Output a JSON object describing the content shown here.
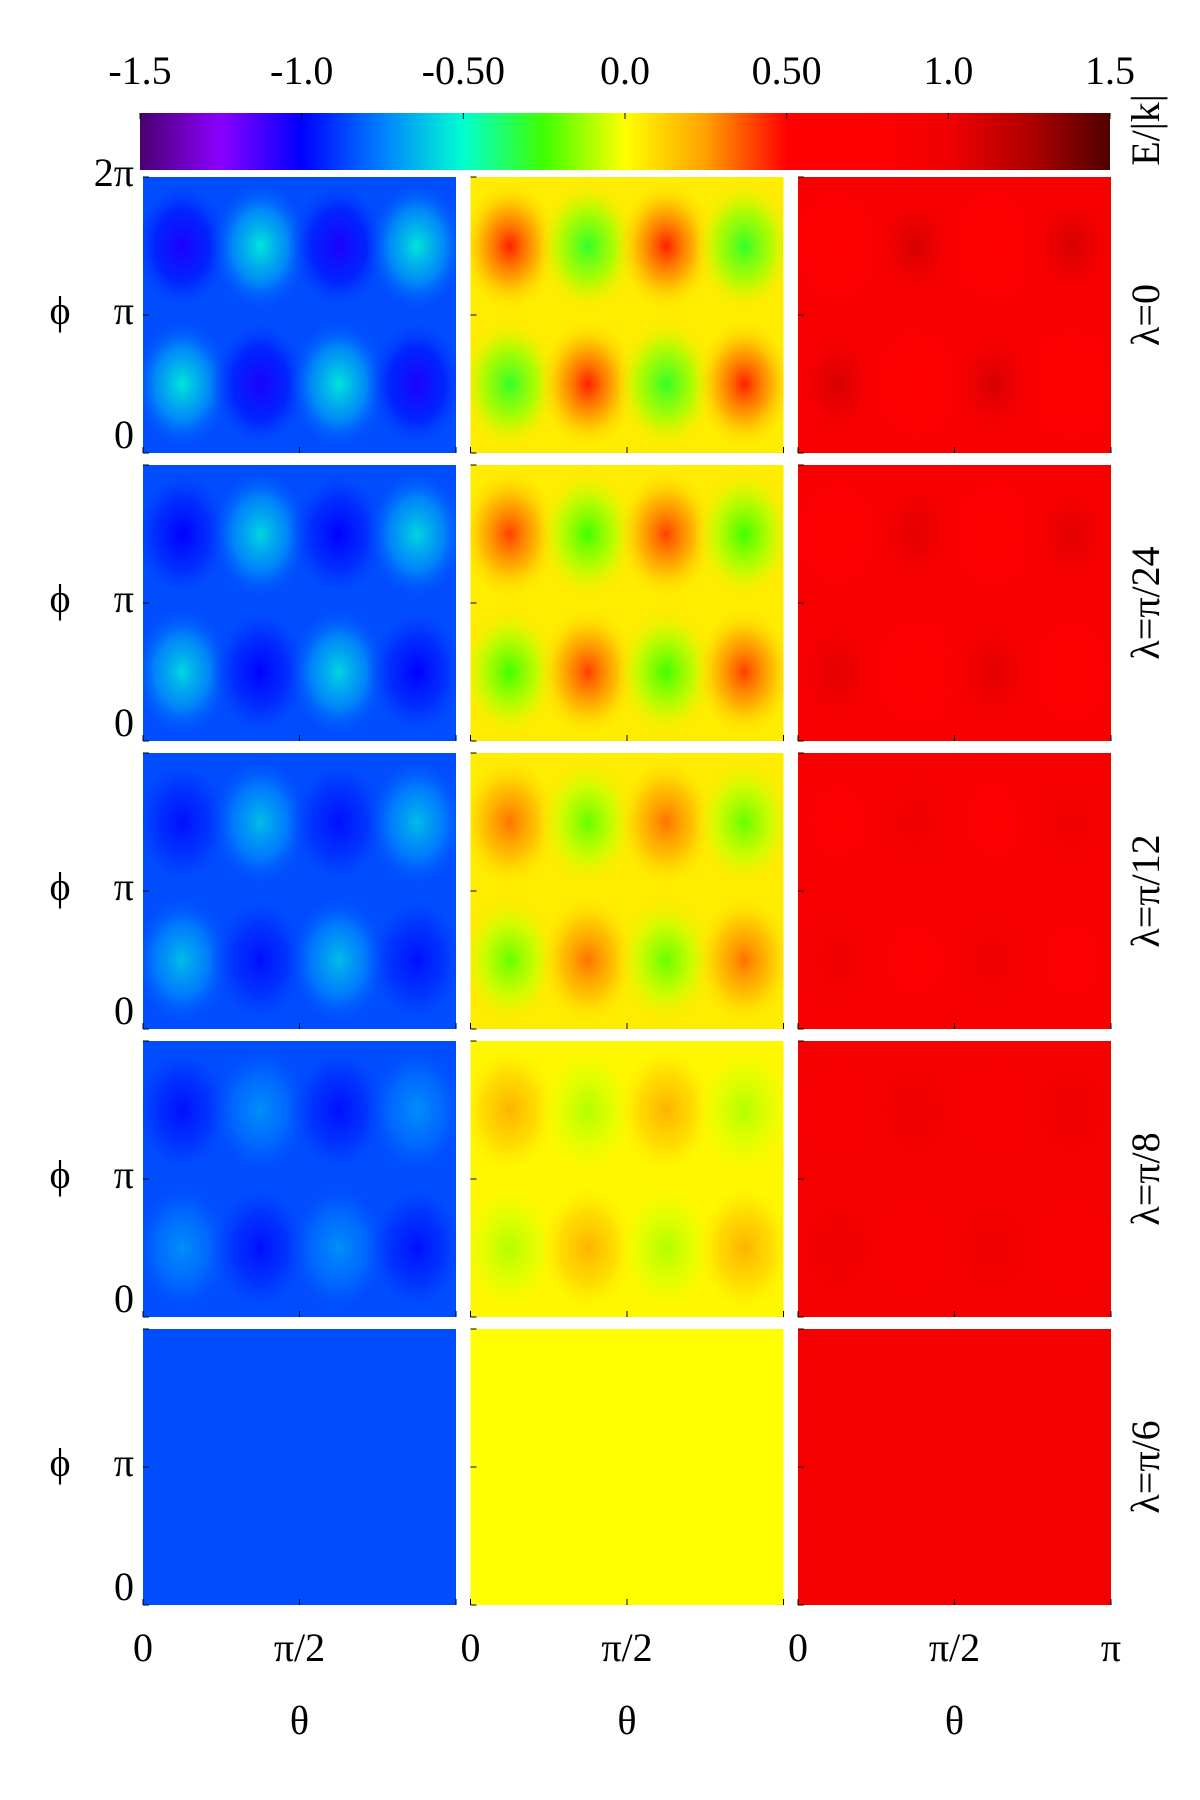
{
  "chart_data": {
    "type": "heatmap",
    "colorbar": {
      "label": "E/|k|",
      "lim": [
        -1.5,
        1.5
      ],
      "ticks": [
        -1.5,
        {
          "value": -1,
          "label": "-1.0"
        },
        {
          "value": -0.5,
          "label": "-0.50"
        },
        {
          "value": 0,
          "label": "0.0"
        },
        {
          "value": 0.5,
          "label": "0.50"
        },
        {
          "value": 1,
          "label": "1.0"
        },
        1.5
      ],
      "colors": [
        "#4a0070",
        "#8a00ff",
        "#0000ff",
        "#0080ff",
        "#00ffd0",
        "#40ff00",
        "#ffff00",
        "#ffa000",
        "#ff0000",
        "#ff0000",
        "#f00000",
        "#b00000",
        "#500000"
      ]
    },
    "xlabel": "θ",
    "ylabel": "ϕ",
    "xlim": [
      0,
      3.1416
    ],
    "xticks": [
      0,
      {
        "value": 1.5708,
        "label": "π/2"
      },
      {
        "value": 3.1416,
        "label": "π"
      }
    ],
    "ylim": [
      0,
      6.2832
    ],
    "yticks": [
      0,
      {
        "value": 3.1416,
        "label": "π"
      },
      {
        "value": 6.2832,
        "label": "2π"
      }
    ],
    "x": [
      0.3927,
      1.1781,
      1.9635,
      2.7489
    ],
    "y": [
      4.7124,
      1.5708
    ],
    "rows": [
      {
        "label": "λ=0",
        "panels": [
          {
            "background": -0.85,
            "values": [
              [
                -1.05,
                -0.55,
                -1.05,
                -0.55
              ],
              [
                -0.55,
                -1.05,
                -0.55,
                -1.05
              ]
            ]
          },
          {
            "background": 0.05,
            "values": [
              [
                0.45,
                -0.3,
                0.45,
                -0.3
              ],
              [
                -0.3,
                0.45,
                -0.3,
                0.45
              ]
            ]
          },
          {
            "background": 0.85,
            "values": [
              [
                0.75,
                1.1,
                0.75,
                1.1
              ],
              [
                1.1,
                0.75,
                1.1,
                0.75
              ]
            ]
          }
        ]
      },
      {
        "label": "λ=π/24",
        "panels": [
          {
            "background": -0.85,
            "values": [
              [
                -1.0,
                -0.58,
                -1.0,
                -0.58
              ],
              [
                -0.58,
                -1.0,
                -0.58,
                -1.0
              ]
            ]
          },
          {
            "background": 0.05,
            "values": [
              [
                0.4,
                -0.25,
                0.4,
                -0.25
              ],
              [
                -0.25,
                0.4,
                -0.25,
                0.4
              ]
            ]
          },
          {
            "background": 0.85,
            "values": [
              [
                0.78,
                1.05,
                0.78,
                1.05
              ],
              [
                1.05,
                0.78,
                1.05,
                0.78
              ]
            ]
          }
        ]
      },
      {
        "label": "λ=π/12",
        "panels": [
          {
            "background": -0.85,
            "values": [
              [
                -0.97,
                -0.63,
                -0.97,
                -0.63
              ],
              [
                -0.63,
                -0.97,
                -0.63,
                -0.97
              ]
            ]
          },
          {
            "background": 0.05,
            "values": [
              [
                0.32,
                -0.2,
                0.32,
                -0.2
              ],
              [
                -0.2,
                0.32,
                -0.2,
                0.32
              ]
            ]
          },
          {
            "background": 0.88,
            "values": [
              [
                0.8,
                1.0,
                0.8,
                1.0
              ],
              [
                1.0,
                0.8,
                1.0,
                0.8
              ]
            ]
          }
        ]
      },
      {
        "label": "λ=π/8",
        "panels": [
          {
            "background": -0.85,
            "values": [
              [
                -0.97,
                -0.72,
                -0.97,
                -0.72
              ],
              [
                -0.72,
                -0.97,
                -0.72,
                -0.97
              ]
            ]
          },
          {
            "background": 0.02,
            "values": [
              [
                0.2,
                -0.1,
                0.2,
                -0.1
              ],
              [
                -0.1,
                0.2,
                -0.1,
                0.2
              ]
            ]
          },
          {
            "background": 0.92,
            "values": [
              [
                0.85,
                1.0,
                0.85,
                1.0
              ],
              [
                1.0,
                0.85,
                1.0,
                0.85
              ]
            ]
          }
        ]
      },
      {
        "label": "λ=π/6",
        "panels": [
          {
            "background": -0.85,
            "values": [
              [
                -0.85,
                -0.85,
                -0.85,
                -0.85
              ],
              [
                -0.85,
                -0.85,
                -0.85,
                -0.85
              ]
            ]
          },
          {
            "background": 0.0,
            "values": [
              [
                0.0,
                0.0,
                0.0,
                0.0
              ],
              [
                0.0,
                0.0,
                0.0,
                0.0
              ]
            ]
          },
          {
            "background": 0.92,
            "values": [
              [
                0.92,
                0.92,
                0.92,
                0.92
              ],
              [
                0.92,
                0.92,
                0.92,
                0.92
              ]
            ]
          }
        ]
      }
    ]
  }
}
